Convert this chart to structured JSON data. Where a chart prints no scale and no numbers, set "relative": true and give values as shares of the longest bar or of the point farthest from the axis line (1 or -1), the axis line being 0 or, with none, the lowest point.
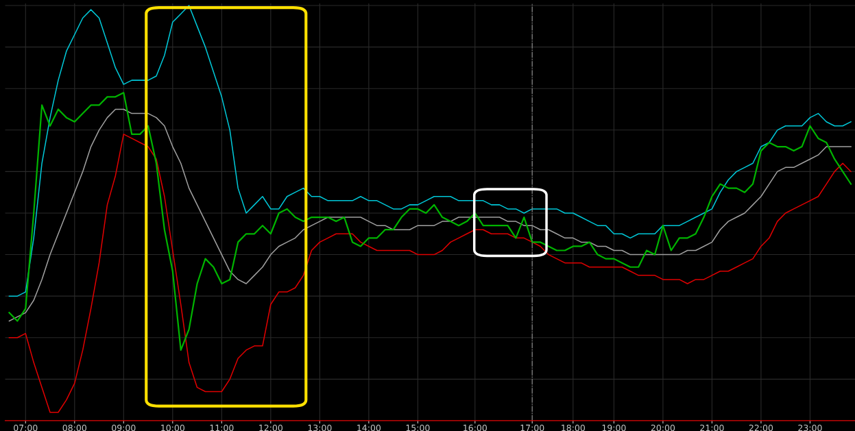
{
  "chart_data": {
    "type": "line",
    "relative": true,
    "grid": true,
    "legend": false,
    "marker": "none",
    "line_style": "solid",
    "categories": [
      null,
      null,
      "07:00",
      null,
      null,
      null,
      null,
      null,
      "08:00",
      null,
      null,
      null,
      null,
      null,
      "09:00",
      null,
      null,
      null,
      null,
      null,
      "10:00",
      null,
      null,
      null,
      null,
      null,
      "11:00",
      null,
      null,
      null,
      null,
      null,
      "12:00",
      null,
      null,
      null,
      null,
      null,
      "13:00",
      null,
      null,
      null,
      null,
      null,
      "14:00",
      null,
      null,
      null,
      null,
      null,
      "15:00",
      null,
      null,
      null,
      null,
      null,
      null,
      "16:00",
      null,
      null,
      null,
      null,
      null,
      null,
      "17:00",
      null,
      null,
      null,
      null,
      "18:00",
      null,
      null,
      null,
      null,
      "19:00",
      null,
      null,
      null,
      null,
      null,
      "20:00",
      null,
      null,
      null,
      null,
      null,
      "21:00",
      null,
      null,
      null,
      null,
      null,
      "22:00",
      null,
      null,
      null,
      null,
      null,
      "23:00",
      null,
      null,
      null,
      null,
      null
    ],
    "series": [
      {
        "color": "#00c8d8",
        "values": [
          0.3,
          0.3,
          0.31,
          0.44,
          0.62,
          0.73,
          0.82,
          0.89,
          0.93,
          0.97,
          0.99,
          0.97,
          0.91,
          0.85,
          0.81,
          0.82,
          0.82,
          0.82,
          0.83,
          0.88,
          0.96,
          0.98,
          1.0,
          0.95,
          0.9,
          0.84,
          0.78,
          0.7,
          0.56,
          0.5,
          0.52,
          0.54,
          0.51,
          0.51,
          0.54,
          0.55,
          0.56,
          0.54,
          0.54,
          0.53,
          0.53,
          0.53,
          0.53,
          0.54,
          0.53,
          0.53,
          0.52,
          0.51,
          0.51,
          0.52,
          0.52,
          0.53,
          0.54,
          0.54,
          0.54,
          0.53,
          0.53,
          0.53,
          0.53,
          0.52,
          0.52,
          0.51,
          0.51,
          0.5,
          0.51,
          0.51,
          0.51,
          0.51,
          0.5,
          0.5,
          0.49,
          0.48,
          0.47,
          0.47,
          0.45,
          0.45,
          0.44,
          0.45,
          0.45,
          0.45,
          0.47,
          0.47,
          0.47,
          0.48,
          0.49,
          0.5,
          0.51,
          0.55,
          0.58,
          0.6,
          0.61,
          0.62,
          0.66,
          0.67,
          0.7,
          0.71,
          0.71,
          0.71,
          0.73,
          0.74,
          0.72,
          0.71,
          0.71,
          0.72
        ]
      },
      {
        "color": "#a0a0a0",
        "values": [
          0.24,
          0.25,
          0.26,
          0.29,
          0.34,
          0.4,
          0.45,
          0.5,
          0.55,
          0.6,
          0.66,
          0.7,
          0.73,
          0.75,
          0.75,
          0.74,
          0.74,
          0.74,
          0.73,
          0.71,
          0.66,
          0.62,
          0.56,
          0.52,
          0.48,
          0.44,
          0.4,
          0.36,
          0.34,
          0.33,
          0.35,
          0.37,
          0.4,
          0.42,
          0.43,
          0.44,
          0.46,
          0.47,
          0.48,
          0.49,
          0.49,
          0.49,
          0.49,
          0.49,
          0.48,
          0.47,
          0.47,
          0.46,
          0.46,
          0.46,
          0.47,
          0.47,
          0.47,
          0.48,
          0.48,
          0.49,
          0.49,
          0.49,
          0.49,
          0.49,
          0.49,
          0.48,
          0.48,
          0.47,
          0.47,
          0.46,
          0.46,
          0.45,
          0.44,
          0.44,
          0.43,
          0.43,
          0.42,
          0.42,
          0.41,
          0.41,
          0.4,
          0.4,
          0.4,
          0.4,
          0.4,
          0.4,
          0.4,
          0.41,
          0.41,
          0.42,
          0.43,
          0.46,
          0.48,
          0.49,
          0.5,
          0.52,
          0.54,
          0.57,
          0.6,
          0.61,
          0.61,
          0.62,
          0.63,
          0.64,
          0.66,
          0.66,
          0.66,
          0.66
        ]
      },
      {
        "color": "#e00000",
        "values": [
          0.2,
          0.2,
          0.21,
          0.14,
          0.08,
          0.02,
          0.02,
          0.05,
          0.09,
          0.17,
          0.27,
          0.38,
          0.52,
          0.59,
          0.69,
          0.68,
          0.67,
          0.66,
          0.63,
          0.54,
          0.41,
          0.28,
          0.14,
          0.08,
          0.07,
          0.07,
          0.07,
          0.1,
          0.15,
          0.17,
          0.18,
          0.18,
          0.28,
          0.31,
          0.31,
          0.32,
          0.35,
          0.41,
          0.43,
          0.44,
          0.45,
          0.45,
          0.45,
          0.43,
          0.42,
          0.41,
          0.41,
          0.41,
          0.41,
          0.41,
          0.4,
          0.4,
          0.4,
          0.41,
          0.43,
          0.44,
          0.45,
          0.46,
          0.46,
          0.45,
          0.45,
          0.45,
          0.44,
          0.44,
          0.43,
          0.42,
          0.4,
          0.39,
          0.38,
          0.38,
          0.38,
          0.37,
          0.37,
          0.37,
          0.37,
          0.37,
          0.36,
          0.35,
          0.35,
          0.35,
          0.34,
          0.34,
          0.34,
          0.33,
          0.34,
          0.34,
          0.35,
          0.36,
          0.36,
          0.37,
          0.38,
          0.39,
          0.42,
          0.44,
          0.48,
          0.5,
          0.51,
          0.52,
          0.53,
          0.54,
          0.57,
          0.6,
          0.62,
          0.6
        ]
      },
      {
        "color": "#00b400",
        "values": [
          0.26,
          0.24,
          0.27,
          0.5,
          0.76,
          0.71,
          0.75,
          0.73,
          0.72,
          0.74,
          0.76,
          0.76,
          0.78,
          0.78,
          0.79,
          0.69,
          0.69,
          0.71,
          0.62,
          0.46,
          0.36,
          0.17,
          0.22,
          0.33,
          0.39,
          0.37,
          0.33,
          0.34,
          0.43,
          0.45,
          0.45,
          0.47,
          0.45,
          0.5,
          0.51,
          0.49,
          0.48,
          0.49,
          0.49,
          0.49,
          0.48,
          0.49,
          0.43,
          0.42,
          0.44,
          0.44,
          0.46,
          0.46,
          0.49,
          0.51,
          0.51,
          0.5,
          0.52,
          0.49,
          0.48,
          0.47,
          0.48,
          0.5,
          0.47,
          0.47,
          0.47,
          0.47,
          0.44,
          0.49,
          0.43,
          0.43,
          0.42,
          0.41,
          0.41,
          0.42,
          0.42,
          0.43,
          0.4,
          0.39,
          0.39,
          0.38,
          0.37,
          0.37,
          0.41,
          0.4,
          0.47,
          0.41,
          0.44,
          0.44,
          0.45,
          0.49,
          0.54,
          0.57,
          0.56,
          0.56,
          0.55,
          0.57,
          0.65,
          0.67,
          0.66,
          0.66,
          0.65,
          0.66,
          0.71,
          0.68,
          0.67,
          0.63,
          0.6,
          0.57
        ]
      }
    ],
    "ref_lines": [
      {
        "axis": "x",
        "value": "17:00",
        "color": "#808080",
        "line_style": "dashed"
      }
    ]
  }
}
